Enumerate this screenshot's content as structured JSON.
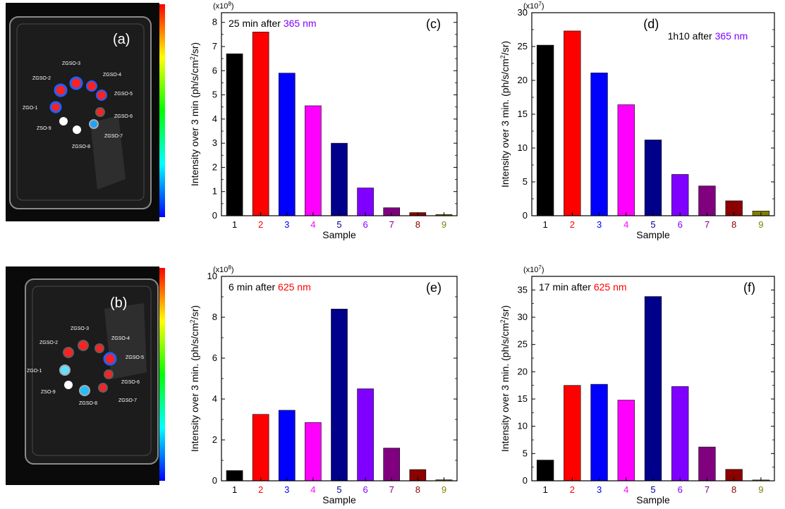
{
  "sample_colors": [
    "#000000",
    "#ff0000",
    "#0000ff",
    "#ff00ff",
    "#00008b",
    "#8000ff",
    "#800080",
    "#8b0000",
    "#808000"
  ],
  "image_panels": [
    {
      "tag": "(a)",
      "labels": [
        "ZGSO-3",
        "ZGSO-2",
        "ZGSO-4",
        "ZGSO-5",
        "ZGO-1",
        "ZGSO-6",
        "ZSO-9",
        "ZGSO-7",
        "ZGSO-8"
      ]
    },
    {
      "tag": "(b)",
      "labels": [
        "ZGSO-3",
        "ZGSO-2",
        "ZGSO-4",
        "ZGSO-5",
        "ZGO-1",
        "ZGSO-6",
        "ZSO-9",
        "ZGSO-7",
        "ZGSO-8"
      ]
    }
  ],
  "chart_data": [
    {
      "type": "bar",
      "tag": "(c)",
      "annotation": "25 min after ",
      "annotation_wavelength": "365 nm",
      "annotation_color": "#8000ff",
      "multiplier": "(x10",
      "multiplier_exp": "8",
      "xlabel": "Sample",
      "ylabel": "Intensity over 3 min (ph/s/cm",
      "ylabel_sup": "2",
      "ylabel_tail": "/sr)",
      "categories": [
        "1",
        "2",
        "3",
        "4",
        "5",
        "6",
        "7",
        "8",
        "9"
      ],
      "values": [
        6.7,
        7.6,
        5.9,
        4.55,
        3.0,
        1.15,
        0.33,
        0.13,
        0.05
      ],
      "ylim": [
        0,
        8.4
      ],
      "yticks": [
        0,
        1,
        2,
        3,
        4,
        5,
        6,
        7,
        8
      ]
    },
    {
      "type": "bar",
      "tag": "(d)",
      "annotation": "1h10 after ",
      "annotation_wavelength": "365 nm",
      "annotation_color": "#8000ff",
      "multiplier": "(x10",
      "multiplier_exp": "7",
      "xlabel": "Sample",
      "ylabel": "Intensity over 3 min. (ph/s/cm",
      "ylabel_sup": "2",
      "ylabel_tail": "/sr)",
      "categories": [
        "1",
        "2",
        "3",
        "4",
        "5",
        "6",
        "7",
        "8",
        "9"
      ],
      "values": [
        25.2,
        27.3,
        21.1,
        16.4,
        11.2,
        6.1,
        4.4,
        2.2,
        0.7
      ],
      "ylim": [
        0,
        30
      ],
      "yticks": [
        0,
        5,
        10,
        15,
        20,
        25,
        30
      ]
    },
    {
      "type": "bar",
      "tag": "(e)",
      "annotation": "6 min after ",
      "annotation_wavelength": "625 nm",
      "annotation_color": "#ff0000",
      "multiplier": "(x10",
      "multiplier_exp": "8",
      "xlabel": "Sample",
      "ylabel": "Intensity over 3 min. (ph/s/cm",
      "ylabel_sup": "2",
      "ylabel_tail": "/sr)",
      "categories": [
        "1",
        "2",
        "3",
        "4",
        "5",
        "6",
        "7",
        "8",
        "9"
      ],
      "values": [
        0.5,
        3.25,
        3.45,
        2.85,
        8.4,
        4.5,
        1.6,
        0.55,
        0.05
      ],
      "ylim": [
        0,
        10
      ],
      "yticks": [
        0,
        2,
        4,
        6,
        8,
        10
      ]
    },
    {
      "type": "bar",
      "tag": "(f)",
      "annotation": "17 min after ",
      "annotation_wavelength": "625 nm",
      "annotation_color": "#ff0000",
      "multiplier": "(x10",
      "multiplier_exp": "7",
      "xlabel": "Sample",
      "ylabel": "Intensity over 3 min. (ph/s/cm",
      "ylabel_sup": "2",
      "ylabel_tail": "/sr)",
      "categories": [
        "1",
        "2",
        "3",
        "4",
        "5",
        "6",
        "7",
        "8",
        "9"
      ],
      "values": [
        3.8,
        17.5,
        17.7,
        14.8,
        33.8,
        17.3,
        6.2,
        2.1,
        0.15
      ],
      "ylim": [
        0,
        37.5
      ],
      "yticks": [
        0,
        5,
        10,
        15,
        20,
        25,
        30,
        35
      ]
    }
  ]
}
